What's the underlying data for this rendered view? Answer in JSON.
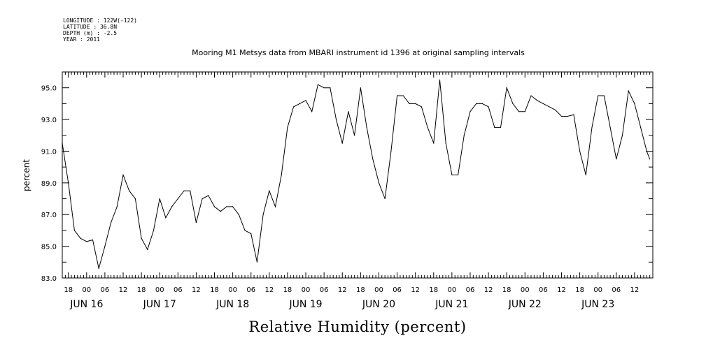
{
  "header": {
    "longitude": "LONGITUDE : 122W(-122)",
    "latitude": "LATITUDE : 36.8N",
    "depth": "DEPTH (m) : -2.5",
    "year": "YEAR : 2011"
  },
  "chart_data": {
    "type": "line",
    "title": "Mooring M1 Metsys data from MBARI instrument id 1396 at original sampling intervals",
    "xlabel": "Relative Humidity (percent)",
    "ylabel": "percent",
    "ylim": [
      83.0,
      96.0
    ],
    "y_ticks": [
      "95.0",
      "93.0",
      "91.0",
      "89.0",
      "87.0",
      "85.0",
      "83.0"
    ],
    "xlim_hours": [
      -8,
      186
    ],
    "x_hour_ticks": [
      "18",
      "00",
      "06",
      "12",
      "18",
      "00",
      "06",
      "12",
      "18",
      "00",
      "06",
      "12",
      "18",
      "00",
      "06",
      "12",
      "18",
      "00",
      "06",
      "12",
      "18",
      "00",
      "06",
      "12",
      "18",
      "00",
      "06",
      "12",
      "18",
      "00",
      "06",
      "12"
    ],
    "x_date_labels": [
      "JUN 16",
      "JUN 17",
      "JUN 18",
      "JUN 19",
      "JUN 20",
      "JUN 21",
      "JUN 22",
      "JUN 23"
    ],
    "grid": false,
    "series": [
      {
        "x": [
          "2011-06-15T16:00",
          "2011-06-15T18:00",
          "2011-06-15T20:00",
          "2011-06-15T22:00",
          "2011-06-16T00:00",
          "2011-06-16T02:00",
          "2011-06-16T04:00",
          "2011-06-16T06:00",
          "2011-06-16T08:00",
          "2011-06-16T10:00",
          "2011-06-16T12:00",
          "2011-06-16T14:00",
          "2011-06-16T16:00",
          "2011-06-16T18:00",
          "2011-06-16T20:00",
          "2011-06-16T22:00",
          "2011-06-17T00:00",
          "2011-06-17T02:00",
          "2011-06-17T04:00",
          "2011-06-17T06:00",
          "2011-06-17T08:00",
          "2011-06-17T10:00",
          "2011-06-17T12:00",
          "2011-06-17T14:00",
          "2011-06-17T16:00",
          "2011-06-17T18:00",
          "2011-06-17T20:00",
          "2011-06-17T22:00",
          "2011-06-18T00:00",
          "2011-06-18T02:00",
          "2011-06-18T04:00",
          "2011-06-18T06:00",
          "2011-06-18T08:00",
          "2011-06-18T10:00",
          "2011-06-18T12:00",
          "2011-06-18T14:00",
          "2011-06-18T16:00",
          "2011-06-18T18:00",
          "2011-06-18T20:00",
          "2011-06-18T22:00",
          "2011-06-19T00:00",
          "2011-06-19T02:00",
          "2011-06-19T04:00",
          "2011-06-19T06:00",
          "2011-06-19T08:00",
          "2011-06-19T10:00",
          "2011-06-19T12:00",
          "2011-06-19T14:00",
          "2011-06-19T16:00",
          "2011-06-19T18:00",
          "2011-06-19T20:00",
          "2011-06-19T22:00",
          "2011-06-20T00:00",
          "2011-06-20T02:00",
          "2011-06-20T04:00",
          "2011-06-20T06:00",
          "2011-06-20T08:00",
          "2011-06-20T10:00",
          "2011-06-20T12:00",
          "2011-06-20T14:00",
          "2011-06-20T16:00",
          "2011-06-20T18:00",
          "2011-06-20T20:00",
          "2011-06-20T22:00",
          "2011-06-21T00:00",
          "2011-06-21T02:00",
          "2011-06-21T04:00",
          "2011-06-21T06:00",
          "2011-06-21T08:00",
          "2011-06-21T10:00",
          "2011-06-21T12:00",
          "2011-06-21T14:00",
          "2011-06-21T16:00",
          "2011-06-21T18:00",
          "2011-06-21T20:00",
          "2011-06-21T22:00",
          "2011-06-22T00:00",
          "2011-06-22T02:00",
          "2011-06-22T04:00",
          "2011-06-22T06:00",
          "2011-06-22T08:00",
          "2011-06-22T10:00",
          "2011-06-22T12:00",
          "2011-06-22T14:00",
          "2011-06-22T16:00",
          "2011-06-22T18:00",
          "2011-06-22T20:00",
          "2011-06-22T22:00",
          "2011-06-23T00:00",
          "2011-06-23T02:00",
          "2011-06-23T04:00",
          "2011-06-23T06:00",
          "2011-06-23T08:00",
          "2011-06-23T10:00",
          "2011-06-23T12:00",
          "2011-06-23T14:00",
          "2011-06-23T16:00",
          "2011-06-23T17:00"
        ],
        "values": [
          91.5,
          89.0,
          86.0,
          85.5,
          85.3,
          85.4,
          83.6,
          85.0,
          86.5,
          87.5,
          89.5,
          88.5,
          88.0,
          85.5,
          84.8,
          86.0,
          88.0,
          86.8,
          87.5,
          88.0,
          88.5,
          88.5,
          86.5,
          88.0,
          88.2,
          87.5,
          87.2,
          87.5,
          87.5,
          87.0,
          86.0,
          85.8,
          84.0,
          87.0,
          88.5,
          87.5,
          89.5,
          92.5,
          93.8,
          94.0,
          94.2,
          93.5,
          95.2,
          95.0,
          95.0,
          93.0,
          91.5,
          93.5,
          92.0,
          95.0,
          92.5,
          90.5,
          89.0,
          88.0,
          91.0,
          94.5,
          94.5,
          94.0,
          94.0,
          93.8,
          92.5,
          91.5,
          95.5,
          91.5,
          89.5,
          89.5,
          92.0,
          93.5,
          94.0,
          94.0,
          93.8,
          92.5,
          92.5,
          95.0,
          94.0,
          93.5,
          93.5,
          94.5,
          94.2,
          94.0,
          93.8,
          93.6,
          93.2,
          93.2,
          93.3,
          91.0,
          89.5,
          92.5,
          94.5,
          94.5,
          92.5,
          90.5,
          92.0,
          94.8,
          94.0,
          92.5,
          91.0,
          90.5
        ]
      }
    ]
  }
}
